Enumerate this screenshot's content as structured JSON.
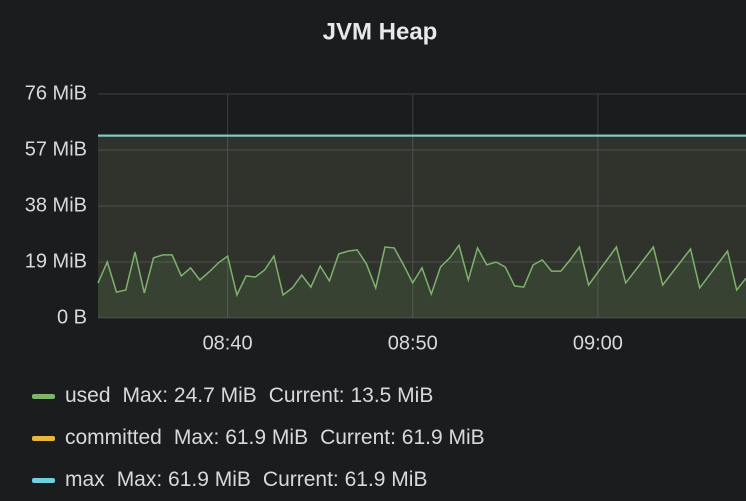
{
  "chart_data": {
    "type": "line",
    "title": "JVM Heap",
    "x": [
      "08:33:00",
      "08:33:30",
      "08:34:00",
      "08:34:30",
      "08:35:00",
      "08:35:30",
      "08:36:00",
      "08:36:30",
      "08:37:00",
      "08:37:30",
      "08:38:00",
      "08:38:30",
      "08:39:00",
      "08:39:30",
      "08:40:00",
      "08:40:30",
      "08:41:00",
      "08:41:30",
      "08:42:00",
      "08:42:30",
      "08:43:00",
      "08:43:30",
      "08:44:00",
      "08:44:30",
      "08:45:00",
      "08:45:30",
      "08:46:00",
      "08:46:30",
      "08:47:00",
      "08:47:30",
      "08:48:00",
      "08:48:30",
      "08:49:00",
      "08:49:30",
      "08:50:00",
      "08:50:30",
      "08:51:00",
      "08:51:30",
      "08:52:00",
      "08:52:30",
      "08:53:00",
      "08:53:30",
      "08:54:00",
      "08:54:30",
      "08:55:00",
      "08:55:30",
      "08:56:00",
      "08:56:30",
      "08:57:00",
      "08:57:30",
      "08:58:00",
      "08:58:30",
      "08:59:00",
      "08:59:30",
      "09:01:00",
      "09:01:30",
      "09:03:00",
      "09:03:30",
      "09:05:00",
      "09:05:30",
      "09:07:00",
      "09:07:30",
      "09:08:00"
    ],
    "series": [
      {
        "name": "used",
        "color": "#7eb26d",
        "max_label": "Max: 24.7 MiB",
        "current_label": "Current: 13.5 MiB",
        "values": [
          11.9,
          19.0,
          8.8,
          9.5,
          22.4,
          8.5,
          20.4,
          21.4,
          21.4,
          14.3,
          17.0,
          12.9,
          15.6,
          18.7,
          21.0,
          7.8,
          14.3,
          13.9,
          16.3,
          21.0,
          7.8,
          10.2,
          14.6,
          10.5,
          17.6,
          12.6,
          21.7,
          22.7,
          23.1,
          18.3,
          10.2,
          24.1,
          23.8,
          18.0,
          11.9,
          17.0,
          8.1,
          17.3,
          20.4,
          24.7,
          12.9,
          23.8,
          18.0,
          19.0,
          17.3,
          10.9,
          10.5,
          18.0,
          19.7,
          15.9,
          15.9,
          19.7,
          24.1,
          11.2,
          24.1,
          11.9,
          24.1,
          11.2,
          23.4,
          10.2,
          22.7,
          9.5,
          13.5
        ]
      },
      {
        "name": "committed",
        "color": "#eab839",
        "max_label": "Max: 61.9 MiB",
        "current_label": "Current: 61.9 MiB",
        "x": [
          "08:33:00",
          "09:08:00"
        ],
        "values": [
          61.9,
          61.9
        ]
      },
      {
        "name": "max",
        "color": "#6ed0e0",
        "max_label": "Max: 61.9 MiB",
        "current_label": "Current: 61.9 MiB",
        "x": [
          "08:33:00",
          "09:08:00"
        ],
        "values": [
          61.9,
          61.9
        ]
      }
    ],
    "xlim": [
      "08:33:00",
      "09:08:00"
    ],
    "xticks": [
      "08:40",
      "08:50",
      "09:00"
    ],
    "ylim": [
      0,
      76
    ],
    "yticks": [
      {
        "value": 0,
        "label": "0 B"
      },
      {
        "value": 19,
        "label": "19 MiB"
      },
      {
        "value": 38,
        "label": "38 MiB"
      },
      {
        "value": 57,
        "label": "57 MiB"
      },
      {
        "value": 76,
        "label": "76 MiB"
      }
    ],
    "grid": true
  }
}
